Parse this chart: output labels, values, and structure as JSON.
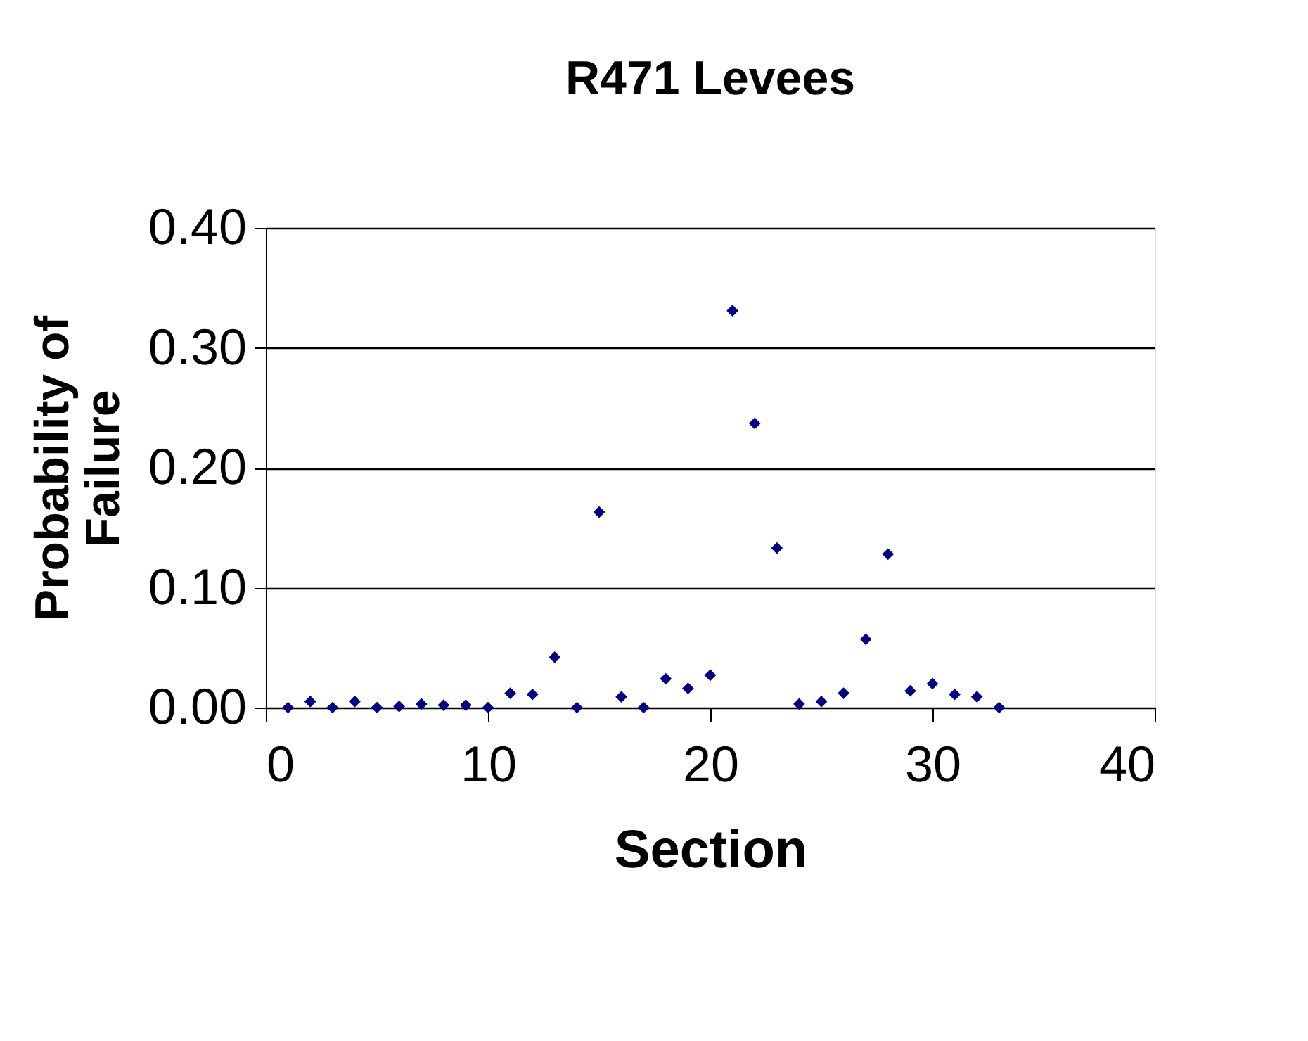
{
  "chart_data": {
    "type": "scatter",
    "title": "R471 Levees",
    "xlabel": "Section",
    "ylabel": "Probability of\nFailure",
    "x": [
      1,
      2,
      3,
      4,
      5,
      6,
      7,
      8,
      9,
      10,
      11,
      12,
      13,
      14,
      15,
      16,
      17,
      18,
      19,
      20,
      21,
      22,
      23,
      24,
      25,
      26,
      27,
      28,
      29,
      30,
      31,
      32,
      33
    ],
    "series": [
      {
        "color": "#000080",
        "values": [
          0.0,
          0.005,
          0.0,
          0.005,
          0.0,
          0.001,
          0.003,
          0.002,
          0.002,
          0.0,
          0.012,
          0.011,
          0.042,
          0.0,
          0.163,
          0.009,
          0.0,
          0.024,
          0.016,
          0.027,
          0.331,
          0.237,
          0.133,
          0.003,
          0.005,
          0.012,
          0.057,
          0.128,
          0.014,
          0.02,
          0.011,
          0.009,
          0.0
        ]
      }
    ],
    "xlim": [
      0,
      40
    ],
    "xticks": [
      0,
      10,
      20,
      30,
      40
    ],
    "ylim": [
      0,
      0.4
    ],
    "yticks": [
      {
        "value": 0,
        "label": "0.00"
      },
      {
        "value": 0.1,
        "label": "0.10"
      },
      {
        "value": 0.2,
        "label": "0.20"
      },
      {
        "value": 0.3,
        "label": "0.30"
      },
      {
        "value": 0.4,
        "label": "0.40"
      }
    ],
    "grid": "y",
    "marker": "diamond",
    "legend": false
  }
}
